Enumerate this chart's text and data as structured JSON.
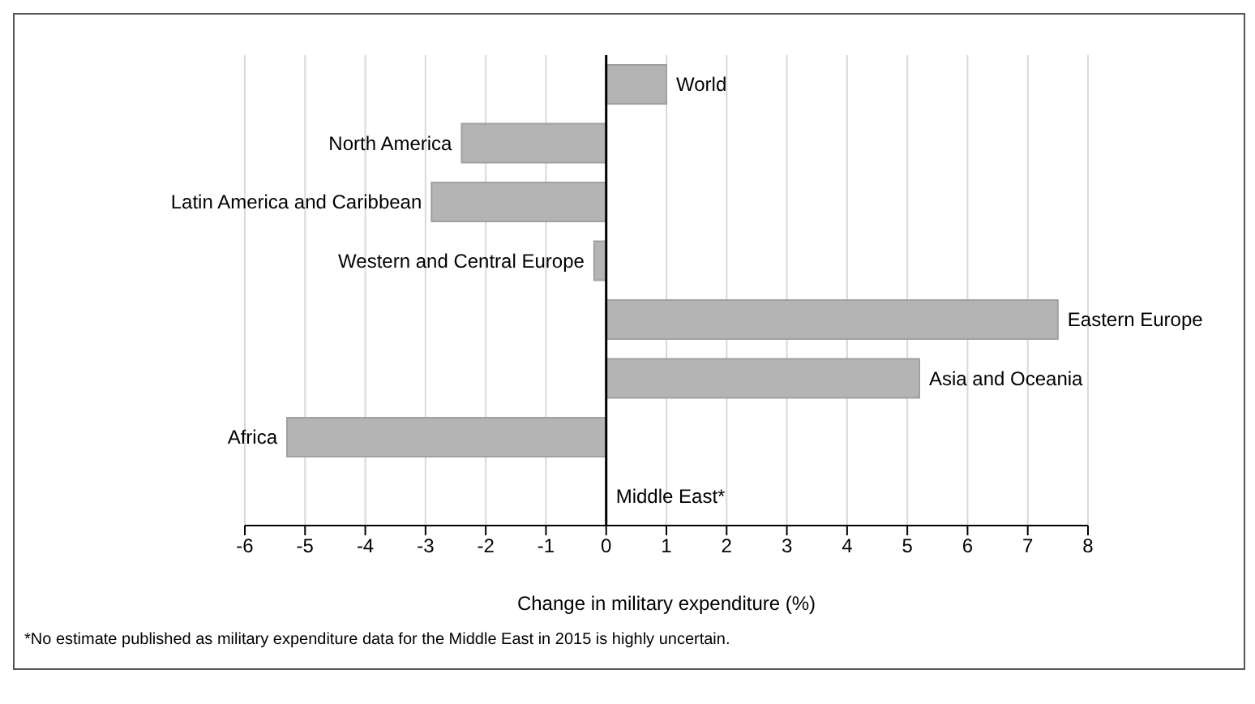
{
  "chart_data": {
    "type": "bar",
    "orientation": "horizontal",
    "categories": [
      "World",
      "North America",
      "Latin America and Caribbean",
      "Western and Central Europe",
      "Eastern Europe",
      "Asia and Oceania",
      "Africa",
      "Middle East*"
    ],
    "values": [
      1.0,
      -2.4,
      -2.9,
      -0.2,
      7.5,
      5.2,
      -5.3,
      null
    ],
    "color": "#b4b4b4",
    "xlabel": "Change in military expenditure (%)",
    "xlim": [
      -6,
      8
    ],
    "xticks": [
      -6,
      -5,
      -4,
      -3,
      -2,
      -1,
      0,
      1,
      2,
      3,
      4,
      5,
      6,
      7,
      8
    ],
    "grid": "x",
    "annotations": [
      "*No estimate published as military expenditure data for the Middle East in 2015 is highly uncertain."
    ]
  }
}
